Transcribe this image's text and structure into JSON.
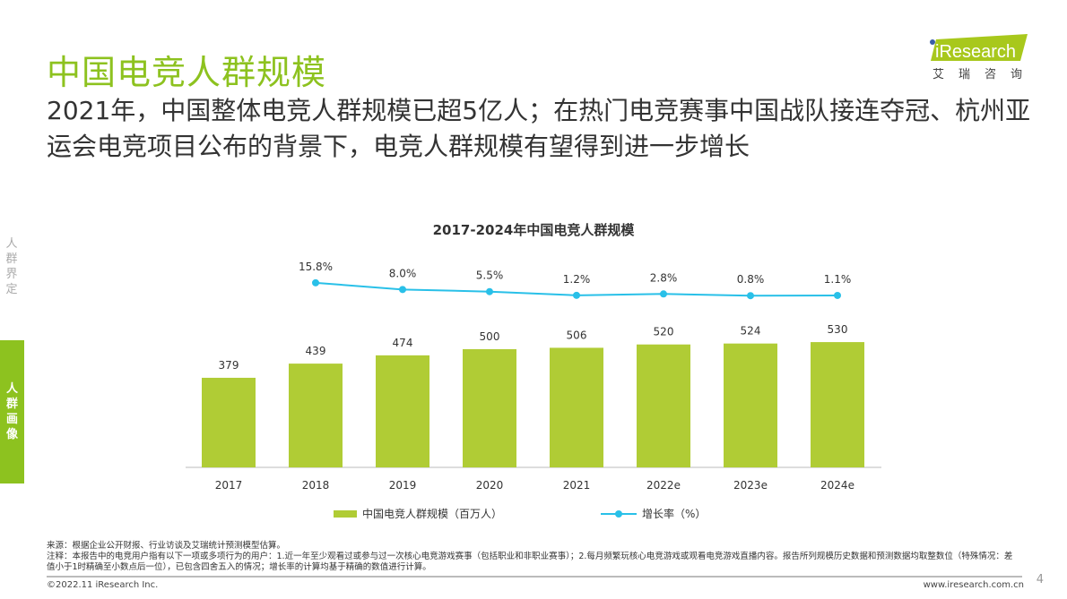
{
  "header": {
    "title": "中国电竞人群规模",
    "subtitle": "2021年，中国整体电竞人群规模已超5亿人；在热门电竞赛事中国战队接连夺冠、杭州亚运会电竞项目公布的背景下，电竞人群规模有望得到进一步增长"
  },
  "logo": {
    "text": "iResearch",
    "cn": [
      "艾",
      "瑞",
      "咨",
      "询"
    ]
  },
  "sidebar": {
    "items": [
      {
        "label": "人群界定",
        "active": false
      },
      {
        "label": "人群画像",
        "active": true
      }
    ]
  },
  "chart_data": {
    "type": "bar+line",
    "title": "2017-2024年中国电竞人群规模",
    "categories": [
      "2017",
      "2018",
      "2019",
      "2020",
      "2021",
      "2022e",
      "2023e",
      "2024e"
    ],
    "series": [
      {
        "name": "中国电竞人群规模（百万人）",
        "type": "bar",
        "color": "#b0cc35",
        "values": [
          379,
          439,
          474,
          500,
          506,
          520,
          524,
          530
        ],
        "labels": [
          "379",
          "439",
          "474",
          "500",
          "506",
          "520",
          "524",
          "530"
        ]
      },
      {
        "name": "增长率（%）",
        "type": "line",
        "color": "#29c0e8",
        "values": [
          null,
          15.8,
          8.0,
          5.5,
          1.2,
          2.8,
          0.8,
          1.1
        ],
        "labels": [
          "",
          "15.8%",
          "8.0%",
          "5.5%",
          "1.2%",
          "2.8%",
          "0.8%",
          "1.1%"
        ]
      }
    ],
    "legend": "bottom"
  },
  "footer": {
    "source": "来源：根据企业公开财报、行业访谈及艾瑞统计预测模型估算。",
    "note": "注释：本报告中的电竞用户指有以下一项或多项行为的用户：1.近一年至少观看过或参与过一次核心电竞游戏赛事（包括职业和非职业赛事）；2.每月频繁玩核心电竞游戏或观看电竞游戏直播内容。报告所列规模历史数据和预测数据均取整数位（特殊情况：差值小于1时精确至小数点后一位），已包含四舍五入的情况；增长率的计算均基于精确的数值进行计算。",
    "copyright": "©2022.11 iResearch Inc.",
    "website": "www.iresearch.com.cn",
    "page": "4"
  }
}
